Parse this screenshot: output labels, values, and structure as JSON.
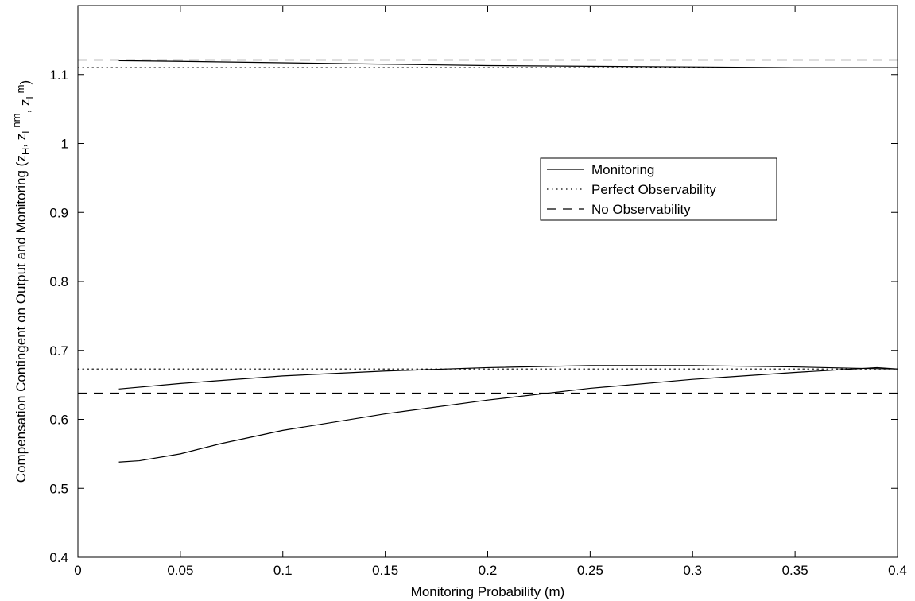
{
  "chart_data": {
    "type": "line",
    "title": "",
    "xlabel": "Monitoring Probability (m)",
    "ylabel_parts": [
      "Compensation Contingent on Output and Monitoring (z",
      "H",
      ", z",
      "L",
      "nm",
      ", z",
      "L",
      "m",
      ")"
    ],
    "xlim": [
      0,
      0.4
    ],
    "ylim": [
      0.4,
      1.2
    ],
    "xticks": [
      0,
      0.05,
      0.1,
      0.15,
      0.2,
      0.25,
      0.3,
      0.35,
      0.4
    ],
    "xtick_labels": [
      "0",
      "0.05",
      "0.1",
      "0.15",
      "0.2",
      "0.25",
      "0.3",
      "0.35",
      "0.4"
    ],
    "yticks": [
      0.4,
      0.5,
      0.6,
      0.7,
      0.8,
      0.9,
      1,
      1.1
    ],
    "ytick_labels": [
      "0.4",
      "0.5",
      "0.6",
      "0.7",
      "0.8",
      "0.9",
      "1",
      "1.1"
    ],
    "grid": false,
    "legend_position": "center-right",
    "legend": [
      {
        "label": "Monitoring",
        "style": "solid"
      },
      {
        "label": "Perfect Observability",
        "style": "dotted"
      },
      {
        "label": "No Observability",
        "style": "dashed"
      }
    ],
    "series": [
      {
        "legend": 0,
        "x": [
          0.02,
          0.05,
          0.1,
          0.15,
          0.2,
          0.25,
          0.3,
          0.35,
          0.4
        ],
        "y": [
          1.12,
          1.119,
          1.117,
          1.115,
          1.113,
          1.112,
          1.111,
          1.11,
          1.11
        ]
      },
      {
        "legend": 0,
        "x": [
          0.02,
          0.05,
          0.1,
          0.15,
          0.2,
          0.25,
          0.27,
          0.3,
          0.35,
          0.38,
          0.4
        ],
        "y": [
          0.644,
          0.652,
          0.663,
          0.67,
          0.675,
          0.678,
          0.678,
          0.678,
          0.676,
          0.674,
          0.673
        ]
      },
      {
        "legend": 0,
        "x": [
          0.02,
          0.03,
          0.05,
          0.07,
          0.1,
          0.15,
          0.2,
          0.25,
          0.3,
          0.35,
          0.39,
          0.4
        ],
        "y": [
          0.538,
          0.54,
          0.55,
          0.565,
          0.584,
          0.608,
          0.628,
          0.645,
          0.658,
          0.668,
          0.675,
          0.673
        ]
      },
      {
        "legend": 1,
        "x": [
          0,
          0.4
        ],
        "y": [
          1.11,
          1.11
        ]
      },
      {
        "legend": 1,
        "x": [
          0,
          0.4
        ],
        "y": [
          0.673,
          0.673
        ]
      },
      {
        "legend": 2,
        "x": [
          0,
          0.4
        ],
        "y": [
          1.121,
          1.121
        ]
      },
      {
        "legend": 2,
        "x": [
          0,
          0.4
        ],
        "y": [
          0.638,
          0.638
        ]
      }
    ]
  }
}
